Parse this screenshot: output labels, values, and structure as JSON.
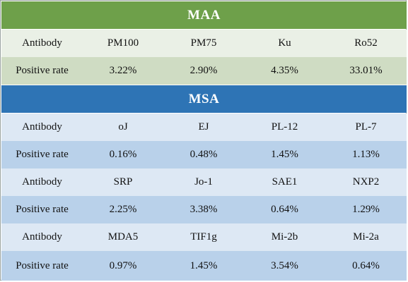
{
  "maa": {
    "title": "MAA",
    "antibody_row": {
      "label": "Antibody",
      "values": [
        "PM100",
        "PM75",
        "Ku",
        "Ro52"
      ]
    },
    "rate_row": {
      "label": "Positive rate",
      "values": [
        "3.22%",
        "2.90%",
        "4.35%",
        "33.01%"
      ]
    }
  },
  "msa": {
    "title": "MSA",
    "groups": [
      {
        "antibody_row": {
          "label": "Antibody",
          "values": [
            "oJ",
            "EJ",
            "PL-12",
            "PL-7"
          ]
        },
        "rate_row": {
          "label": "Positive rate",
          "values": [
            "0.16%",
            "0.48%",
            "1.45%",
            "1.13%"
          ]
        }
      },
      {
        "antibody_row": {
          "label": "Antibody",
          "values": [
            "SRP",
            "Jo-1",
            "SAE1",
            "NXP2"
          ]
        },
        "rate_row": {
          "label": "Positive rate",
          "values": [
            "2.25%",
            "3.38%",
            "0.64%",
            "1.29%"
          ]
        }
      },
      {
        "antibody_row": {
          "label": "Antibody",
          "values": [
            "MDA5",
            "TIF1g",
            "Mi-2b",
            "Mi-2a"
          ]
        },
        "rate_row": {
          "label": "Positive rate",
          "values": [
            "0.97%",
            "1.45%",
            "3.54%",
            "0.64%"
          ]
        }
      }
    ]
  },
  "colors": {
    "maa_header": "#6ea04a",
    "msa_header": "#2e74b5",
    "maa_row_light": "#eaf0e6",
    "maa_row_dark": "#cfdcc3",
    "msa_row_light": "#dde8f4",
    "msa_row_dark": "#b9d1ea"
  }
}
